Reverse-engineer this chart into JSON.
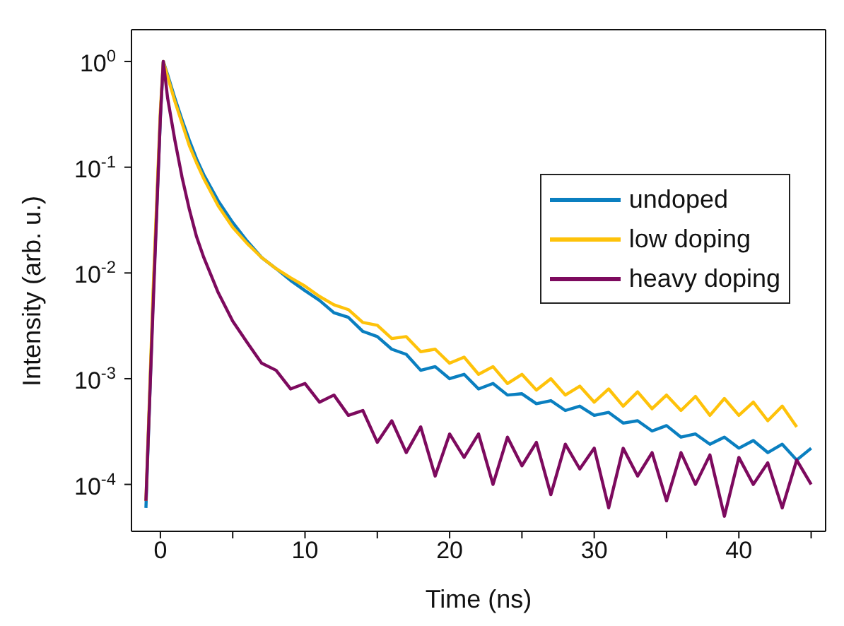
{
  "chart_data": {
    "type": "line",
    "xlabel": "Time (ns)",
    "ylabel": "Intensity (arb. u.)",
    "log": "y",
    "grid": false,
    "legend": "right",
    "marker": "none",
    "line_style": "solid",
    "xlim": [
      -2,
      46
    ],
    "xticks": [
      0,
      {
        "value": 5,
        "label": null
      },
      10,
      {
        "value": 15,
        "label": null
      },
      20,
      {
        "value": 25,
        "label": null
      },
      30,
      {
        "value": 35,
        "label": null
      },
      40,
      {
        "value": 45,
        "label": null
      }
    ],
    "ylim": [
      3.6e-05,
      2
    ],
    "yticks": [
      {
        "value": 0.0001,
        "label": "10$^{-4}$"
      },
      {
        "value": 0.001,
        "label": "10$^{-3}$"
      },
      {
        "value": 0.01,
        "label": "10$^{-2}$"
      },
      {
        "value": 0.1,
        "label": "10$^{-1}$"
      },
      {
        "value": 1,
        "label": "10$^{0}$"
      }
    ],
    "x": [
      -1,
      -0.5,
      0,
      0.2,
      0.5,
      1,
      1.5,
      2,
      2.5,
      3,
      4,
      5,
      6,
      7,
      8,
      9,
      10,
      11,
      12,
      13,
      14,
      15,
      16,
      17,
      18,
      19,
      20,
      21,
      22,
      23,
      24,
      25,
      26,
      27,
      28,
      29,
      30,
      31,
      32,
      33,
      34,
      35,
      36,
      37,
      38,
      39,
      40,
      41,
      42,
      43,
      44,
      45
    ],
    "series": [
      {
        "name": "undoped",
        "color": "#0a7fc0",
        "values": [
          6e-05,
          0.006,
          0.3,
          1,
          0.75,
          0.45,
          0.28,
          0.18,
          0.12,
          0.085,
          0.048,
          0.03,
          0.02,
          0.014,
          0.011,
          0.0085,
          0.0068,
          0.0055,
          0.0042,
          0.0038,
          0.0028,
          0.0025,
          0.0019,
          0.0017,
          0.0012,
          0.0013,
          0.001,
          0.0011,
          0.0008,
          0.0009,
          0.0007,
          0.00072,
          0.00058,
          0.00062,
          0.0005,
          0.00055,
          0.00045,
          0.00048,
          0.00038,
          0.0004,
          0.00032,
          0.00036,
          0.00028,
          0.0003,
          0.00024,
          0.00028,
          0.00022,
          0.00026,
          0.0002,
          0.00024,
          0.00017,
          0.00022
        ]
      },
      {
        "name": "low doping",
        "color": "#fec20a",
        "values": [
          7e-05,
          0.007,
          0.35,
          1,
          0.72,
          0.42,
          0.26,
          0.16,
          0.11,
          0.078,
          0.043,
          0.027,
          0.019,
          0.014,
          0.011,
          0.009,
          0.0075,
          0.006,
          0.005,
          0.0045,
          0.0034,
          0.0032,
          0.0024,
          0.0025,
          0.0018,
          0.0019,
          0.0014,
          0.0016,
          0.0011,
          0.0013,
          0.0009,
          0.0011,
          0.00078,
          0.001,
          0.0007,
          0.00085,
          0.0006,
          0.0008,
          0.00055,
          0.00075,
          0.00052,
          0.0007,
          0.0005,
          0.00068,
          0.00045,
          0.00065,
          0.00045,
          0.0006,
          0.0004,
          0.00055,
          0.00035,
          null
        ]
      },
      {
        "name": "heavy doping",
        "color": "#7d0a5e",
        "values": [
          7e-05,
          0.005,
          0.3,
          1,
          0.45,
          0.18,
          0.08,
          0.04,
          0.022,
          0.014,
          0.0065,
          0.0035,
          0.0022,
          0.0014,
          0.0012,
          0.0008,
          0.0009,
          0.0006,
          0.0007,
          0.00045,
          0.0005,
          0.00025,
          0.0004,
          0.0002,
          0.00035,
          0.00012,
          0.0003,
          0.00018,
          0.0003,
          0.0001,
          0.00028,
          0.00015,
          0.00025,
          8e-05,
          0.00024,
          0.00014,
          0.00022,
          6e-05,
          0.00022,
          0.00012,
          0.0002,
          7e-05,
          0.0002,
          0.0001,
          0.00019,
          5e-05,
          0.00018,
          0.0001,
          0.00016,
          6e-05,
          0.00017,
          0.0001
        ]
      }
    ]
  }
}
